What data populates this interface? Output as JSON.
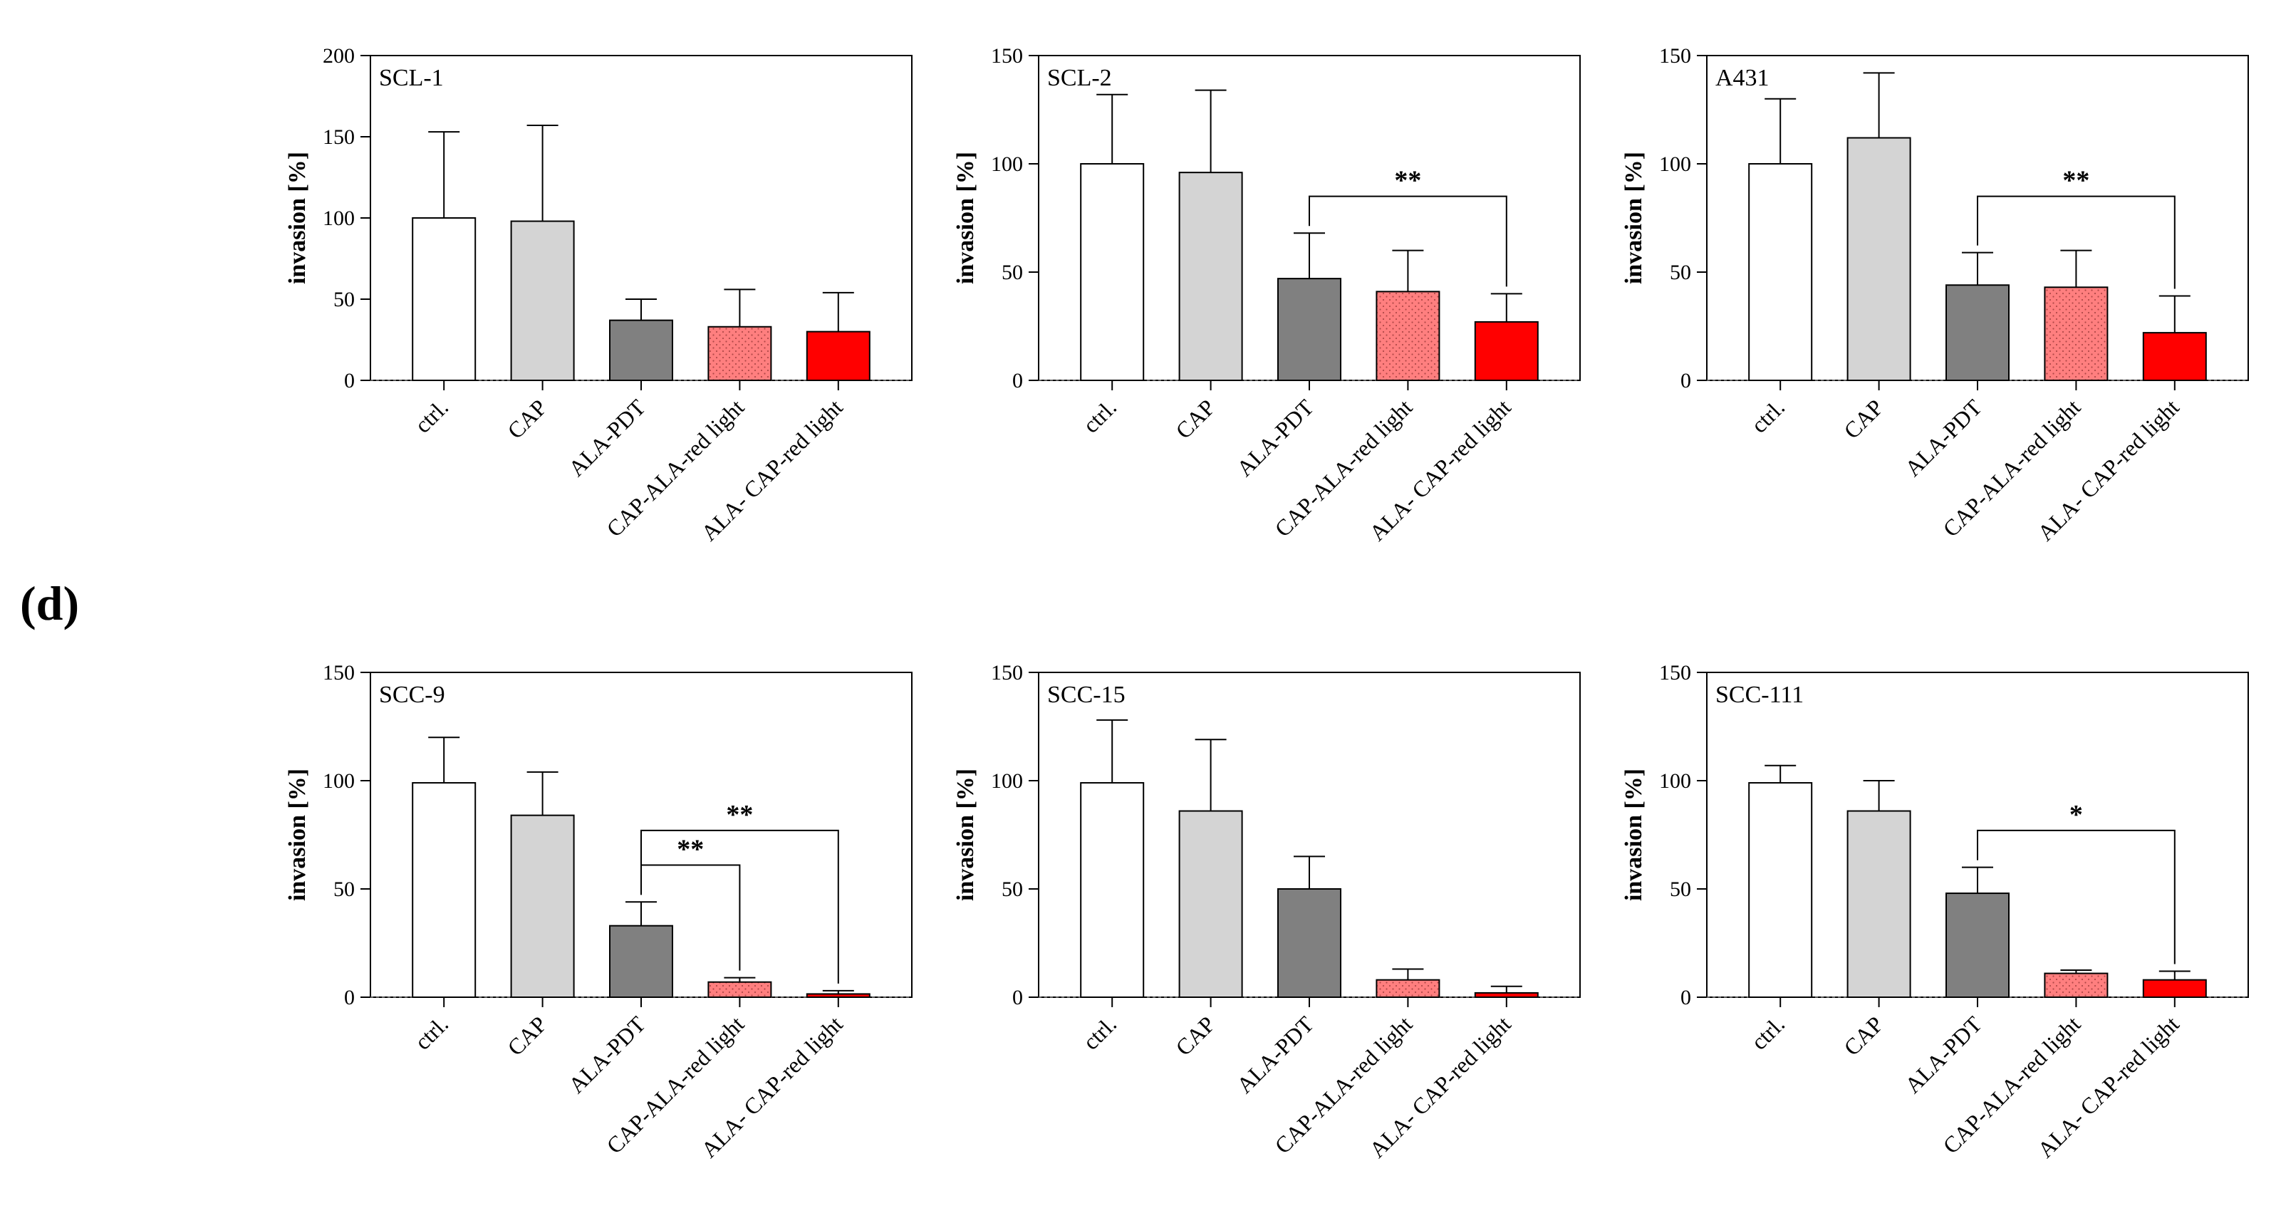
{
  "panel_label": "(d)",
  "colors": {
    "ctrl": "#ffffff",
    "CAP": "#d4d4d4",
    "ALA-PDT": "#808080",
    "CAP-ALA-red light": "#ff7f7f",
    "ALA- CAP-red light": "#ff0000",
    "axis": "#000000"
  },
  "chart_data": [
    {
      "type": "bar",
      "title": "SCL-1",
      "ylabel": "invasion [%]",
      "xlabel": "",
      "ylim": [
        0,
        200
      ],
      "yticks": [
        0,
        50,
        100,
        150,
        200
      ],
      "categories": [
        "ctrl.",
        "CAP",
        "ALA-PDT",
        "CAP-ALA-red light",
        "ALA- CAP-red light"
      ],
      "values": [
        100,
        98,
        37,
        33,
        30
      ],
      "errors": [
        53,
        59,
        13,
        23,
        24
      ],
      "significance": []
    },
    {
      "type": "bar",
      "title": "SCL-2",
      "ylabel": "invasion [%]",
      "xlabel": "",
      "ylim": [
        0,
        150
      ],
      "yticks": [
        0,
        50,
        100,
        150
      ],
      "categories": [
        "ctrl.",
        "CAP",
        "ALA-PDT",
        "CAP-ALA-red light",
        "ALA- CAP-red light"
      ],
      "values": [
        100,
        96,
        47,
        41,
        27
      ],
      "errors": [
        32,
        38,
        21,
        19,
        13
      ],
      "significance": [
        {
          "from": 2,
          "to": 4,
          "label": "**",
          "level": 1
        }
      ]
    },
    {
      "type": "bar",
      "title": "A431",
      "ylabel": "invasion [%]",
      "xlabel": "",
      "ylim": [
        0,
        150
      ],
      "yticks": [
        0,
        50,
        100,
        150
      ],
      "categories": [
        "ctrl.",
        "CAP",
        "ALA-PDT",
        "CAP-ALA-red light",
        "ALA- CAP-red light"
      ],
      "values": [
        100,
        112,
        44,
        43,
        22
      ],
      "errors": [
        30,
        30,
        15,
        17,
        17
      ],
      "significance": [
        {
          "from": 2,
          "to": 4,
          "label": "**",
          "level": 1
        }
      ]
    },
    {
      "type": "bar",
      "title": "SCC-9",
      "ylabel": "invasion [%]",
      "xlabel": "",
      "ylim": [
        0,
        150
      ],
      "yticks": [
        0,
        50,
        100,
        150
      ],
      "categories": [
        "ctrl.",
        "CAP",
        "ALA-PDT",
        "CAP-ALA-red light",
        "ALA- CAP-red light"
      ],
      "values": [
        99,
        84,
        33,
        7,
        1.5
      ],
      "errors": [
        21,
        20,
        11,
        2,
        1.5
      ],
      "significance": [
        {
          "from": 2,
          "to": 3,
          "label": "**",
          "level": 1
        },
        {
          "from": 2,
          "to": 4,
          "label": "**",
          "level": 2
        }
      ]
    },
    {
      "type": "bar",
      "title": "SCC-15",
      "ylabel": "invasion [%]",
      "xlabel": "",
      "ylim": [
        0,
        150
      ],
      "yticks": [
        0,
        50,
        100,
        150
      ],
      "categories": [
        "ctrl.",
        "CAP",
        "ALA-PDT",
        "CAP-ALA-red light",
        "ALA- CAP-red light"
      ],
      "values": [
        99,
        86,
        50,
        8,
        2
      ],
      "errors": [
        29,
        33,
        15,
        5,
        3
      ],
      "significance": []
    },
    {
      "type": "bar",
      "title": "SCC-111",
      "ylabel": "invasion [%]",
      "xlabel": "",
      "ylim": [
        0,
        150
      ],
      "yticks": [
        0,
        50,
        100,
        150
      ],
      "categories": [
        "ctrl.",
        "CAP",
        "ALA-PDT",
        "CAP-ALA-red light",
        "ALA- CAP-red light"
      ],
      "values": [
        99,
        86,
        48,
        11,
        8
      ],
      "errors": [
        8,
        14,
        12,
        1.5,
        4
      ],
      "significance": [
        {
          "from": 2,
          "to": 4,
          "label": "*",
          "level": 1
        }
      ]
    }
  ]
}
